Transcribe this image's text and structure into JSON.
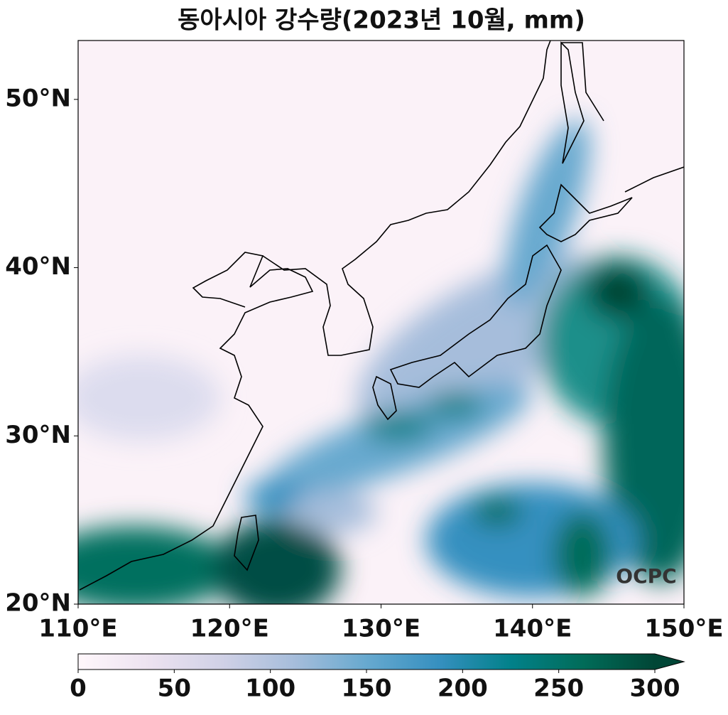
{
  "chart_data": {
    "type": "map",
    "title": "동아시아 강수량(2023년 10월, mm)",
    "xlim": [
      110,
      150
    ],
    "ylim": [
      20,
      53.5
    ],
    "xticks": [
      {
        "value": 110,
        "label": "110°E"
      },
      {
        "value": 120,
        "label": "120°E"
      },
      {
        "value": 130,
        "label": "130°E"
      },
      {
        "value": 140,
        "label": "140°E"
      },
      {
        "value": 150,
        "label": "150°E"
      }
    ],
    "yticks": [
      {
        "value": 20,
        "label": "20°N"
      },
      {
        "value": 30,
        "label": "30°N"
      },
      {
        "value": 40,
        "label": "40°N"
      },
      {
        "value": 50,
        "label": "50°N"
      }
    ],
    "colorbar": {
      "lim": [
        0,
        300
      ],
      "ticks": [
        0,
        50,
        100,
        150,
        200,
        250,
        300
      ],
      "extend": "max",
      "colors": [
        "#fff7fb",
        "#ece2f0",
        "#d0d1e6",
        "#a6bddb",
        "#67a9cf",
        "#3690c0",
        "#02818a",
        "#016c59",
        "#014636"
      ]
    },
    "watermark": "OCPC"
  }
}
